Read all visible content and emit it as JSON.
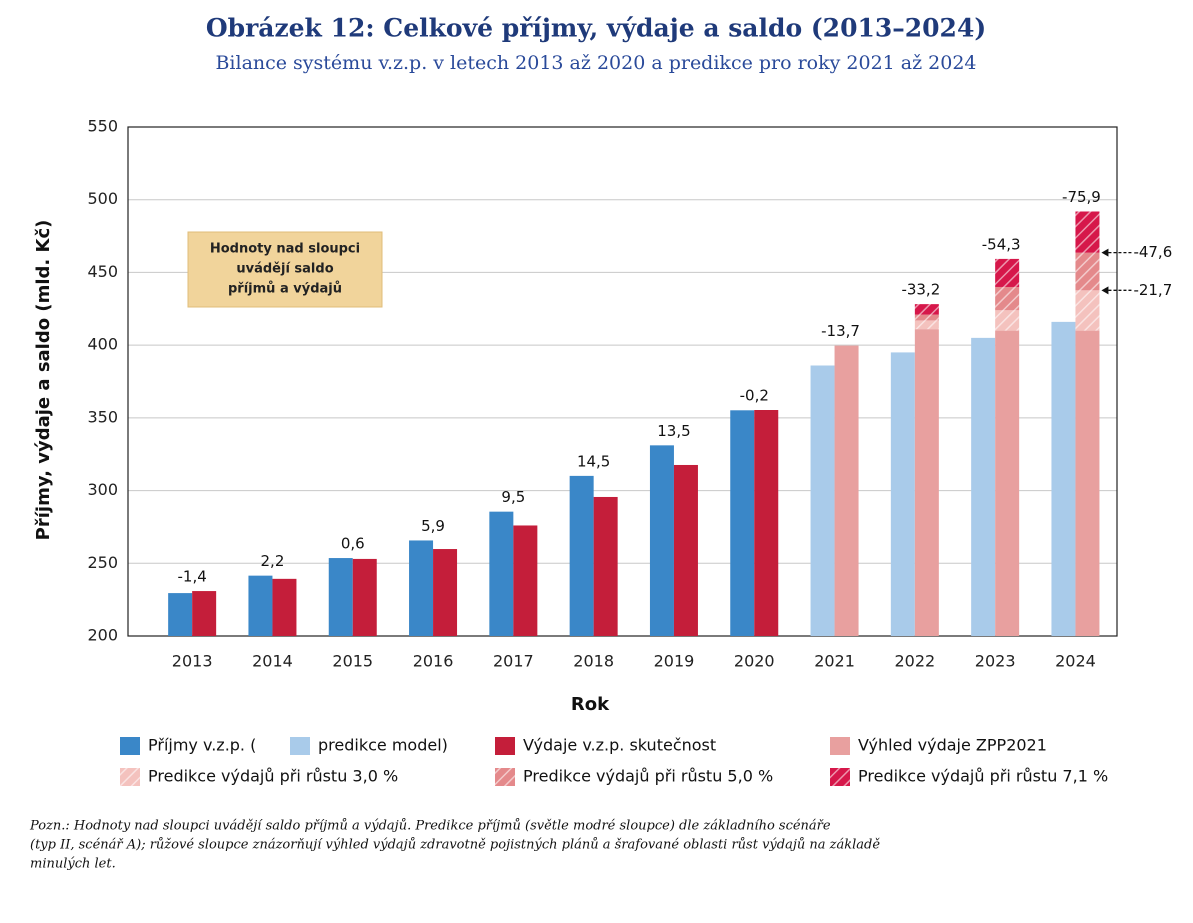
{
  "chart_data": {
    "type": "bar",
    "title": "Obrázek 12: Celkové příjmy, výdaje a saldo (2013–2024)",
    "subtitle": "Bilance systému v.z.p. v letech 2013 až 2020 a predikce pro roky 2021 až 2024",
    "x_label": "Rok",
    "y_label": "Příjmy, výdaje a saldo (mld. Kč)",
    "categories": [
      "2013",
      "2014",
      "2015",
      "2016",
      "2017",
      "2018",
      "2019",
      "2020",
      "2021",
      "2022",
      "2023",
      "2024"
    ],
    "ylim": [
      200,
      550
    ],
    "yticks": [
      200,
      250,
      300,
      350,
      400,
      450,
      500,
      550
    ],
    "grid": true,
    "series": [
      {
        "name": "Příjmy v.z.p. (",
        "color": "#3a87c8",
        "values": [
          229.5,
          241.5,
          253.6,
          265.7,
          285.5,
          310.1,
          331.1,
          355.2,
          null,
          null,
          null,
          null
        ]
      },
      {
        "name": "predikce model)",
        "color": "#a9cbea",
        "values": [
          null,
          null,
          null,
          null,
          null,
          null,
          null,
          null,
          386,
          395,
          405,
          416
        ]
      },
      {
        "name": "Výdaje v.z.p. skutečnost",
        "color": "#c41e3a",
        "values": [
          230.9,
          239.3,
          253.0,
          259.8,
          276.0,
          295.6,
          317.6,
          355.4,
          null,
          null,
          null,
          null
        ]
      },
      {
        "name": "Výhled výdaje ZPP2021",
        "color": "#e8a09f",
        "values": [
          null,
          null,
          null,
          null,
          null,
          null,
          null,
          null,
          399.7,
          411,
          410,
          410
        ]
      },
      {
        "name": "Predikce výdajů při růstu 3,0 %",
        "color": "#f4c2be",
        "hatch": true,
        "values": [
          null,
          null,
          null,
          null,
          null,
          null,
          null,
          null,
          null,
          6,
          14,
          27.7
        ]
      },
      {
        "name": "Predikce výdajů při růstu 5,0 %",
        "color": "#e4898b",
        "hatch": true,
        "values": [
          null,
          null,
          null,
          null,
          null,
          null,
          null,
          null,
          null,
          4,
          16,
          25.9
        ]
      },
      {
        "name": "Predikce výdajů při růstu 7,1 %",
        "color": "#d6174a",
        "hatch": true,
        "values": [
          null,
          null,
          null,
          null,
          null,
          null,
          null,
          null,
          null,
          7.2,
          19.3,
          28.3
        ]
      }
    ],
    "saldo": {
      "values": [
        -1.4,
        2.2,
        0.6,
        5.9,
        9.5,
        14.5,
        13.5,
        -0.2,
        -13.7,
        -33.2,
        -54.3,
        -75.9
      ],
      "value_labels": [
        "-1,4",
        "2,2",
        "0,6",
        "5,9",
        "9,5",
        "14,5",
        "13,5",
        "-0,2",
        "-13,7",
        "-33,2",
        "-54,3",
        "-75,9"
      ]
    },
    "annotations": [
      {
        "value": -47.6,
        "label": "-47,6"
      },
      {
        "value": -21.7,
        "label": "-21,7"
      }
    ],
    "info_box": [
      "Hodnoty nad sloupci",
      "uvádějí saldo",
      "příjmů a výdajů"
    ],
    "note": [
      "Pozn.: Hodnoty nad sloupci uvádějí saldo příjmů a výdajů. Predikce příjmů (světle modré sloupce) dle základního scénáře",
      "(typ II, scénář A); růžové sloupce znázorňují výhled výdajů zdravotně pojistných plánů a šrafované oblasti růst výdajů na základě",
      "minulých let."
    ]
  }
}
